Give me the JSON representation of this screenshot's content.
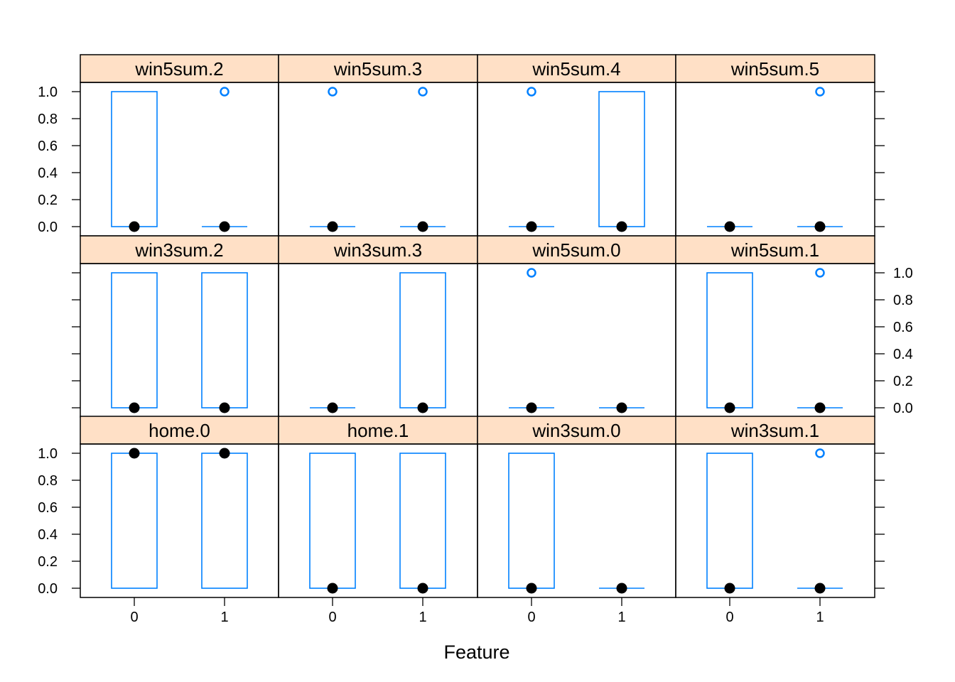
{
  "chart_data": {
    "type": "box",
    "layout": "trellis 4 columns x 3 rows",
    "xlabel": "Feature",
    "categories": [
      "0",
      "1"
    ],
    "y_ticks": [
      "0.0",
      "0.2",
      "0.4",
      "0.6",
      "0.8",
      "1.0"
    ],
    "ylim": [
      0,
      1
    ],
    "colors": {
      "box": "#0080ff",
      "strip": "#ffe0c6",
      "median": "#000000"
    },
    "panels": [
      {
        "label": "win5sum.2",
        "row": 0,
        "col": 0,
        "boxes": [
          {
            "category": "0",
            "q1": 0,
            "median": 0,
            "q3": 1,
            "outliers": []
          },
          {
            "category": "1",
            "q1": 0,
            "median": 0,
            "q3": 0,
            "outliers": [
              1
            ]
          }
        ]
      },
      {
        "label": "win5sum.3",
        "row": 0,
        "col": 1,
        "boxes": [
          {
            "category": "0",
            "q1": 0,
            "median": 0,
            "q3": 0,
            "outliers": [
              1
            ]
          },
          {
            "category": "1",
            "q1": 0,
            "median": 0,
            "q3": 0,
            "outliers": [
              1
            ]
          }
        ]
      },
      {
        "label": "win5sum.4",
        "row": 0,
        "col": 2,
        "boxes": [
          {
            "category": "0",
            "q1": 0,
            "median": 0,
            "q3": 0,
            "outliers": [
              1
            ]
          },
          {
            "category": "1",
            "q1": 0,
            "median": 0,
            "q3": 1,
            "outliers": []
          }
        ]
      },
      {
        "label": "win5sum.5",
        "row": 0,
        "col": 3,
        "boxes": [
          {
            "category": "0",
            "q1": 0,
            "median": 0,
            "q3": 0,
            "outliers": []
          },
          {
            "category": "1",
            "q1": 0,
            "median": 0,
            "q3": 0,
            "outliers": [
              1
            ]
          }
        ]
      },
      {
        "label": "win3sum.2",
        "row": 1,
        "col": 0,
        "boxes": [
          {
            "category": "0",
            "q1": 0,
            "median": 0,
            "q3": 1,
            "outliers": []
          },
          {
            "category": "1",
            "q1": 0,
            "median": 0,
            "q3": 1,
            "outliers": []
          }
        ]
      },
      {
        "label": "win3sum.3",
        "row": 1,
        "col": 1,
        "boxes": [
          {
            "category": "0",
            "q1": 0,
            "median": 0,
            "q3": 0,
            "outliers": []
          },
          {
            "category": "1",
            "q1": 0,
            "median": 0,
            "q3": 1,
            "outliers": []
          }
        ]
      },
      {
        "label": "win5sum.0",
        "row": 1,
        "col": 2,
        "boxes": [
          {
            "category": "0",
            "q1": 0,
            "median": 0,
            "q3": 0,
            "outliers": [
              1
            ]
          },
          {
            "category": "1",
            "q1": 0,
            "median": 0,
            "q3": 0,
            "outliers": []
          }
        ]
      },
      {
        "label": "win5sum.1",
        "row": 1,
        "col": 3,
        "boxes": [
          {
            "category": "0",
            "q1": 0,
            "median": 0,
            "q3": 1,
            "outliers": []
          },
          {
            "category": "1",
            "q1": 0,
            "median": 0,
            "q3": 0,
            "outliers": [
              1
            ]
          }
        ]
      },
      {
        "label": "home.0",
        "row": 2,
        "col": 0,
        "boxes": [
          {
            "category": "0",
            "q1": 0,
            "median": 1,
            "q3": 1,
            "outliers": []
          },
          {
            "category": "1",
            "q1": 0,
            "median": 1,
            "q3": 1,
            "outliers": []
          }
        ]
      },
      {
        "label": "home.1",
        "row": 2,
        "col": 1,
        "boxes": [
          {
            "category": "0",
            "q1": 0,
            "median": 0,
            "q3": 1,
            "outliers": []
          },
          {
            "category": "1",
            "q1": 0,
            "median": 0,
            "q3": 1,
            "outliers": []
          }
        ]
      },
      {
        "label": "win3sum.0",
        "row": 2,
        "col": 2,
        "boxes": [
          {
            "category": "0",
            "q1": 0,
            "median": 0,
            "q3": 1,
            "outliers": []
          },
          {
            "category": "1",
            "q1": 0,
            "median": 0,
            "q3": 0,
            "outliers": []
          }
        ]
      },
      {
        "label": "win3sum.1",
        "row": 2,
        "col": 3,
        "boxes": [
          {
            "category": "0",
            "q1": 0,
            "median": 0,
            "q3": 1,
            "outliers": []
          },
          {
            "category": "1",
            "q1": 0,
            "median": 0,
            "q3": 0,
            "outliers": [
              1
            ]
          }
        ]
      }
    ]
  }
}
